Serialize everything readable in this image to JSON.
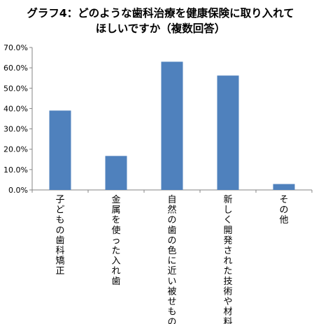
{
  "chart_data": {
    "type": "bar",
    "title_lines": [
      "グラフ4：どのような歯科治療を健康保険に取り入れて",
      "ほしいですか（複数回答）"
    ],
    "categories": [
      "子どもの歯科矯正",
      "金属を使った入れ歯",
      "自然の歯の色に近い被せもの",
      "新しく開発された技術や材料",
      "その他"
    ],
    "values": [
      39.0,
      16.7,
      63.0,
      56.2,
      2.9
    ],
    "ylim": [
      0,
      70
    ],
    "yticks": [
      0,
      10,
      20,
      30,
      40,
      50,
      60,
      70
    ],
    "ytick_labels": [
      "0.0%",
      "10.0%",
      "20.0%",
      "30.0%",
      "40.0%",
      "50.0%",
      "60.0%",
      "70.0%"
    ],
    "grid": false,
    "legend": "none",
    "colors": {
      "bar": "#4f81bd",
      "axis": "#868686"
    }
  }
}
